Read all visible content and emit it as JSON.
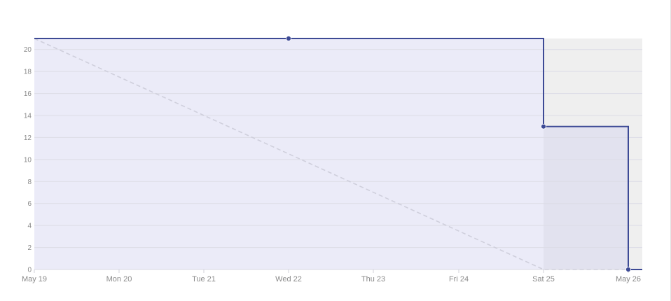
{
  "chart_data": {
    "type": "line",
    "subtype": "burndown",
    "x_categories": [
      "May 19",
      "Mon 20",
      "Tue 21",
      "Wed 22",
      "Thu 23",
      "Fri 24",
      "Sat 25",
      "May 26"
    ],
    "yticks": [
      0,
      2,
      4,
      6,
      8,
      10,
      12,
      14,
      16,
      18,
      20
    ],
    "ylim": [
      0,
      21
    ],
    "grid": true,
    "non_working_period": {
      "from": "Sat 25",
      "to": "May 26 end"
    },
    "series": [
      {
        "kind": "actual",
        "step": true,
        "points": [
          {
            "x": "May 19",
            "y": 21
          },
          {
            "x": "Wed 22",
            "y": 21,
            "marker": true
          },
          {
            "x": "Sat 25",
            "y": 21
          },
          {
            "x": "Sat 25",
            "y": 13,
            "marker": true
          },
          {
            "x": "May 26",
            "y": 13
          },
          {
            "x": "May 26",
            "y": 0,
            "marker": true
          },
          {
            "x": "May 26 end",
            "y": 0
          }
        ]
      },
      {
        "kind": "ideal",
        "dashed": true,
        "points": [
          {
            "x": "May 19",
            "y": 21
          },
          {
            "x": "Sat 25",
            "y": 0
          },
          {
            "x": "May 26 end",
            "y": 0
          }
        ]
      }
    ],
    "colors": {
      "actual_line": "#3d4a95",
      "actual_fill": "#ebebf8",
      "ideal_line": "#cfcfdc",
      "weekend_band": "#efefef",
      "weekend_fill": "#e2e2ef",
      "grid": "#dcdce6",
      "tick_text": "#8a8a8a"
    }
  }
}
